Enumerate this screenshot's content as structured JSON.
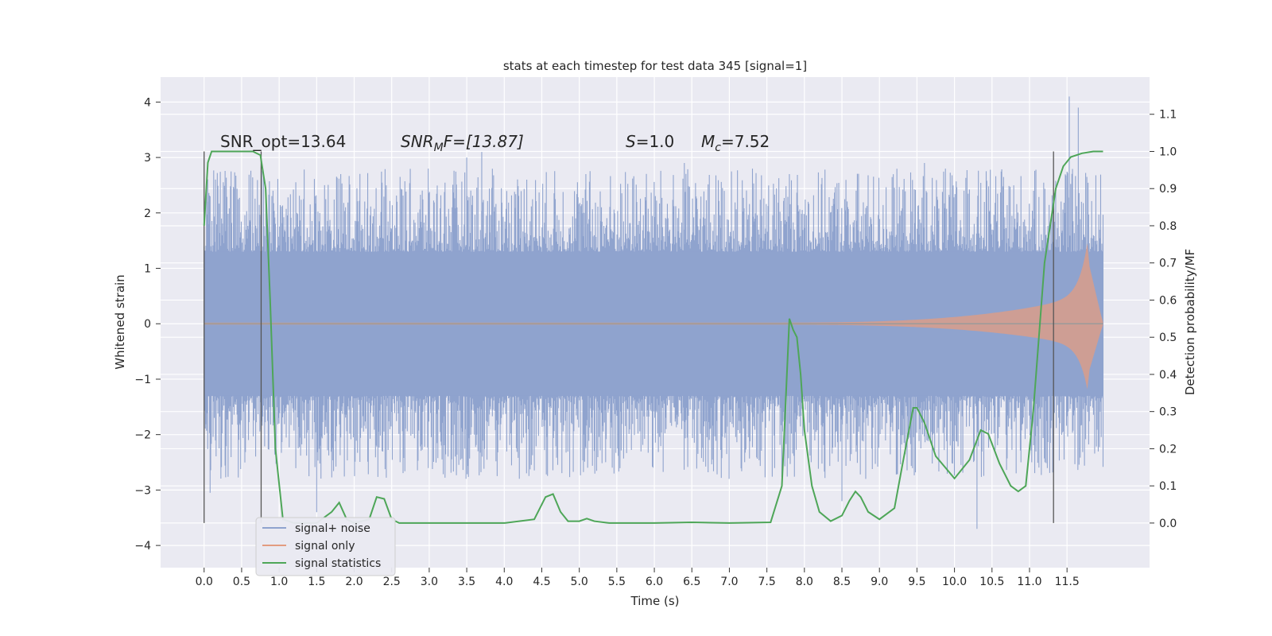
{
  "chart_data": {
    "type": "line",
    "title": "stats at each timestep for test data 345 [signal=1]",
    "xlabel": "Time (s)",
    "ylabel": "Whitened strain",
    "y2label": "Detection probability/MF",
    "xlim": [
      -0.58,
      12.6
    ],
    "ylim": [
      -4.4,
      4.45
    ],
    "y2lim": [
      -0.12,
      1.2
    ],
    "x_ticks": [
      "0.0",
      "0.5",
      "1.0",
      "1.5",
      "2.0",
      "2.5",
      "3.0",
      "3.5",
      "4.0",
      "4.5",
      "5.0",
      "5.5",
      "6.0",
      "6.5",
      "7.0",
      "7.5",
      "8.0",
      "8.5",
      "9.0",
      "9.5",
      "10.0",
      "10.5",
      "11.0",
      "11.5"
    ],
    "y_ticks": [
      "4",
      "3",
      "2",
      "1",
      "0",
      "−1",
      "−2",
      "−3",
      "−4"
    ],
    "y2_ticks": [
      "1.1",
      "1.0",
      "0.9",
      "0.8",
      "0.7",
      "0.6",
      "0.5",
      "0.4",
      "0.3",
      "0.2",
      "0.1",
      "0.0"
    ],
    "grid": true,
    "legend_position": "lower-left",
    "annotations": {
      "snr_opt": "SNR_opt=13.64",
      "snr_mf_main": "SNR",
      "snr_mf_sub": "M",
      "snr_mf_rest": "F=[13.87]",
      "s_main": "S",
      "s_rest": "=1.0",
      "mc_main": "M",
      "mc_sub": "c",
      "mc_rest": "=7.52"
    },
    "vertical_lines_x": [
      0.0,
      0.76,
      11.32
    ],
    "series": [
      {
        "name": "signal+ noise",
        "color": "#8fa3ce",
        "core_envelope": 1.3,
        "typical_spike_max": 2.8,
        "x_range": [
          0.0,
          11.98
        ],
        "spikes": [
          [
            0.05,
            2.2
          ],
          [
            0.08,
            -3.05
          ],
          [
            1.5,
            -3.4
          ],
          [
            3.5,
            3.0
          ],
          [
            3.7,
            3.1
          ],
          [
            4.3,
            2.6
          ],
          [
            6.4,
            2.9
          ],
          [
            7.8,
            2.7
          ],
          [
            8.5,
            -3.2
          ],
          [
            9.6,
            2.9
          ],
          [
            10.3,
            -3.7
          ],
          [
            11.53,
            4.1
          ],
          [
            11.65,
            3.9
          ]
        ]
      },
      {
        "name": "signal only",
        "color": "#e39c80",
        "start_x": 7.2,
        "end_x": 11.98,
        "peak_x": 11.8,
        "peak_pos": 1.72,
        "peak_neg": -1.4
      },
      {
        "name": "signal statistics",
        "color": "#4ea658",
        "axis": "right",
        "x": [
          0.0,
          0.05,
          0.1,
          0.2,
          0.3,
          0.5,
          0.65,
          0.75,
          0.82,
          0.88,
          0.95,
          1.05,
          1.2,
          1.5,
          1.7,
          1.8,
          1.9,
          2.0,
          2.2,
          2.3,
          2.4,
          2.5,
          2.6,
          3.0,
          4.0,
          4.4,
          4.55,
          4.65,
          4.75,
          4.85,
          5.0,
          5.1,
          5.2,
          5.4,
          6.0,
          6.5,
          7.0,
          7.55,
          7.7,
          7.8,
          7.85,
          7.9,
          7.95,
          8.0,
          8.1,
          8.2,
          8.35,
          8.5,
          8.6,
          8.68,
          8.75,
          8.85,
          9.0,
          9.2,
          9.3,
          9.45,
          9.5,
          9.6,
          9.75,
          10.0,
          10.2,
          10.35,
          10.45,
          10.6,
          10.75,
          10.85,
          10.95,
          11.05,
          11.2,
          11.35,
          11.45,
          11.55,
          11.7,
          11.85,
          11.98
        ],
        "y": [
          0.8,
          0.97,
          1.0,
          1.0,
          1.0,
          1.0,
          1.0,
          0.99,
          0.9,
          0.6,
          0.2,
          0.01,
          0.0,
          0.0,
          0.03,
          0.055,
          0.01,
          0.0,
          0.01,
          0.07,
          0.065,
          0.01,
          0.0,
          0.0,
          0.0,
          0.01,
          0.07,
          0.078,
          0.03,
          0.005,
          0.005,
          0.012,
          0.005,
          0.0,
          0.0,
          0.002,
          0.0,
          0.002,
          0.1,
          0.55,
          0.52,
          0.5,
          0.4,
          0.25,
          0.1,
          0.03,
          0.005,
          0.02,
          0.06,
          0.085,
          0.07,
          0.03,
          0.01,
          0.04,
          0.15,
          0.31,
          0.31,
          0.27,
          0.18,
          0.12,
          0.17,
          0.25,
          0.24,
          0.16,
          0.1,
          0.085,
          0.1,
          0.3,
          0.7,
          0.9,
          0.96,
          0.985,
          0.995,
          1.0,
          1.0
        ]
      }
    ]
  }
}
